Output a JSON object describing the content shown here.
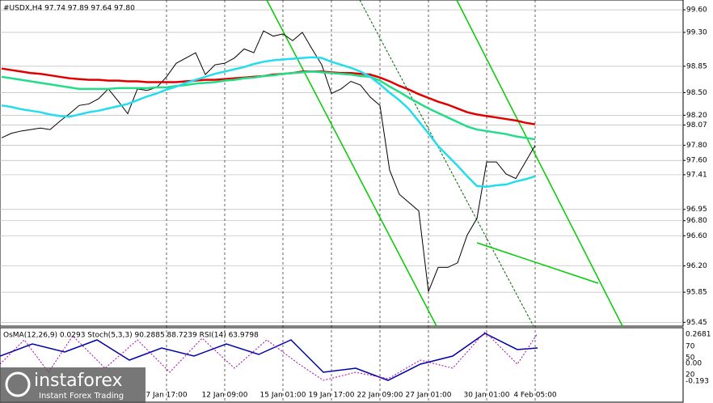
{
  "header": "#USDX,H4  97.74 97.89 97.64 97.80",
  "chart_data": {
    "type": "line",
    "categories": [
      null,
      null,
      null,
      null,
      null,
      null,
      null,
      null,
      null,
      null,
      null,
      null,
      null,
      null,
      null,
      null,
      null,
      "7 Jan 17:00",
      null,
      null,
      null,
      null,
      null,
      "12 Jan 09:00",
      null,
      null,
      null,
      null,
      null,
      "15 Jan 01:00",
      null,
      null,
      null,
      null,
      "19 Jan 17:00",
      null,
      null,
      null,
      null,
      "22 Jan 09:00",
      null,
      null,
      null,
      null,
      "27 Jan 01:00",
      null,
      null,
      null,
      null,
      null,
      "30 Jan 01:00",
      null,
      null,
      null,
      null,
      "4 Feb 05:00"
    ],
    "series": [
      {
        "color": "#000000",
        "values": [
          97.9,
          97.96,
          97.99,
          98.01,
          98.03,
          98.01,
          98.12,
          98.22,
          98.33,
          98.35,
          98.42,
          98.55,
          98.39,
          98.22,
          98.55,
          98.53,
          98.57,
          98.71,
          98.89,
          98.96,
          99.03,
          98.74,
          98.87,
          98.89,
          98.96,
          99.08,
          99.03,
          99.32,
          99.25,
          99.28,
          99.19,
          99.3,
          99.08,
          98.87,
          98.49,
          98.55,
          98.65,
          98.6,
          98.44,
          98.33,
          97.47,
          97.15,
          97.04,
          96.93,
          95.86,
          96.18,
          96.18,
          96.24,
          96.61,
          96.83,
          97.58,
          97.58,
          97.42,
          97.36,
          97.58,
          97.8
        ]
      },
      {
        "color": "#e00000",
        "values": [
          98.82,
          98.8,
          98.78,
          98.76,
          98.75,
          98.73,
          98.71,
          98.69,
          98.68,
          98.67,
          98.67,
          98.66,
          98.66,
          98.65,
          98.65,
          98.64,
          98.64,
          98.64,
          98.64,
          98.65,
          98.66,
          98.67,
          98.67,
          98.68,
          98.69,
          98.7,
          98.71,
          98.72,
          98.74,
          98.75,
          98.76,
          98.78,
          98.78,
          98.78,
          98.77,
          98.76,
          98.76,
          98.75,
          98.74,
          98.7,
          98.65,
          98.59,
          98.54,
          98.48,
          98.43,
          98.38,
          98.34,
          98.29,
          98.24,
          98.21,
          98.19,
          98.17,
          98.15,
          98.13,
          98.1,
          98.08
        ]
      },
      {
        "color": "#22dd88",
        "values": [
          98.71,
          98.69,
          98.67,
          98.65,
          98.63,
          98.61,
          98.59,
          98.57,
          98.55,
          98.55,
          98.55,
          98.55,
          98.56,
          98.56,
          98.56,
          98.56,
          98.57,
          98.57,
          98.59,
          98.6,
          98.62,
          98.63,
          98.64,
          98.66,
          98.67,
          98.69,
          98.7,
          98.72,
          98.73,
          98.75,
          98.76,
          98.77,
          98.78,
          98.77,
          98.76,
          98.75,
          98.74,
          98.72,
          98.71,
          98.66,
          98.58,
          98.51,
          98.43,
          98.36,
          98.29,
          98.23,
          98.17,
          98.11,
          98.05,
          98.01,
          97.99,
          97.97,
          97.95,
          97.92,
          97.9,
          97.88
        ]
      },
      {
        "color": "#22ddee",
        "values": [
          98.33,
          98.31,
          98.28,
          98.26,
          98.24,
          98.21,
          98.19,
          98.18,
          98.21,
          98.24,
          98.26,
          98.29,
          98.32,
          98.35,
          98.4,
          98.45,
          98.49,
          98.54,
          98.58,
          98.63,
          98.67,
          98.71,
          98.75,
          98.78,
          98.81,
          98.84,
          98.88,
          98.91,
          98.93,
          98.94,
          98.95,
          98.96,
          98.97,
          98.96,
          98.91,
          98.87,
          98.83,
          98.78,
          98.71,
          98.61,
          98.5,
          98.4,
          98.28,
          98.12,
          97.96,
          97.79,
          97.66,
          97.53,
          97.39,
          97.26,
          97.25,
          97.27,
          97.28,
          97.32,
          97.35,
          97.39
        ]
      }
    ],
    "ylim": [
      95.4,
      99.73
    ],
    "yticks": [
      {
        "value": 99.6,
        "label": "99.60"
      },
      {
        "value": 99.3,
        "label": "99.30"
      },
      98.85,
      {
        "value": 98.5,
        "label": "98.50"
      },
      {
        "value": 98.2,
        "label": "98.20"
      },
      98.07,
      {
        "value": 97.8,
        "label": "97.80"
      },
      {
        "value": 97.6,
        "label": "97.60"
      },
      97.41,
      96.95,
      {
        "value": 96.8,
        "label": "96.80"
      },
      {
        "value": 96.6,
        "label": "96.60"
      },
      {
        "value": 96.2,
        "label": "96.20"
      },
      95.85,
      95.45
    ],
    "grid": true
  },
  "indicator": {
    "text": "OsMA(12,26,9) 0.0293  Stoch(5,3,3) 90.2885 88.7239  RSI(14) 63.9798",
    "axis_labels": [
      "0.2681",
      "70",
      "50",
      "0.00",
      "20",
      "-0.193"
    ]
  },
  "watermark": {
    "brand": "instaforex",
    "tagline": "Instant Forex Trading"
  }
}
